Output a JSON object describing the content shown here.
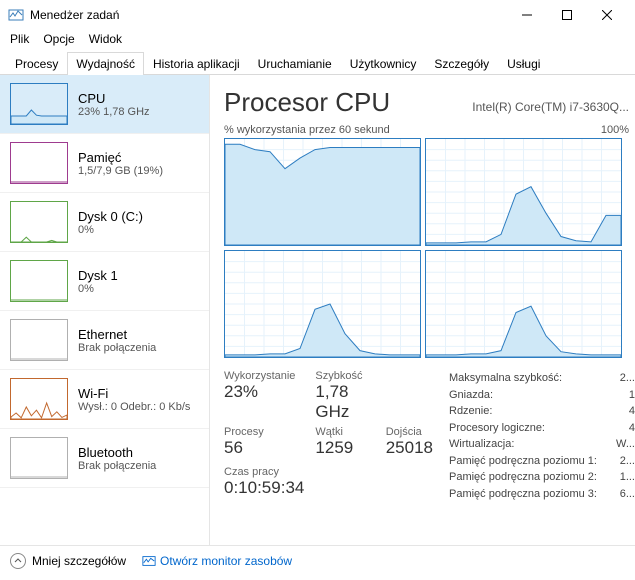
{
  "window": {
    "title": "Menedżer zadań"
  },
  "menu": {
    "file": "Plik",
    "options": "Opcje",
    "view": "Widok"
  },
  "tabs": {
    "items": [
      "Procesy",
      "Wydajność",
      "Historia aplikacji",
      "Uruchamianie",
      "Użytkownicy",
      "Szczegóły",
      "Usługi"
    ],
    "active_index": 1
  },
  "sidebar": {
    "items": [
      {
        "name": "CPU",
        "sub": "23%  1,78 GHz",
        "border": "#2d7dc1",
        "fill": "#cfe8f7",
        "active": true,
        "spark": {
          "type": "area",
          "values": [
            20,
            20,
            20,
            20,
            35,
            22,
            20,
            20,
            20,
            20,
            20,
            20
          ]
        }
      },
      {
        "name": "Pamięć",
        "sub": "1,5/7,9 GB (19%)",
        "border": "#9e3b8f",
        "fill": "#f4e6f2",
        "spark": {
          "type": "flat",
          "level": 0
        }
      },
      {
        "name": "Dysk 0 (C:)",
        "sub": "0%",
        "border": "#5fa648",
        "fill": "#ffffff",
        "spark": {
          "type": "spikes",
          "values": [
            0,
            0,
            0,
            12,
            0,
            0,
            0,
            0,
            4,
            0,
            0,
            0
          ]
        }
      },
      {
        "name": "Dysk 1",
        "sub": "0%",
        "border": "#5fa648",
        "fill": "#ffffff",
        "spark": {
          "type": "flat",
          "level": 0
        }
      },
      {
        "name": "Ethernet",
        "sub": "Brak połączenia",
        "border": "#b0b0b0",
        "fill": "#ffffff",
        "spark": {
          "type": "flat",
          "level": 0
        }
      },
      {
        "name": "Wi-Fi",
        "sub": "Wysł.: 0 Odebr.: 0 Kb/s",
        "border": "#c2682e",
        "fill": "#ffffff",
        "spark": {
          "type": "spikes",
          "values": [
            5,
            15,
            3,
            30,
            8,
            22,
            3,
            40,
            6,
            18,
            4,
            10
          ]
        }
      },
      {
        "name": "Bluetooth",
        "sub": "Brak połączenia",
        "border": "#b0b0b0",
        "fill": "#ffffff",
        "spark": {
          "type": "flat",
          "level": 0
        }
      }
    ]
  },
  "main": {
    "title": "Procesor CPU",
    "model": "Intel(R) Core(TM) i7-3630Q...",
    "chart_caption": "% wykorzystania przez 60 sekund",
    "chart_max": "100%",
    "chart_color": "#2d7dc1",
    "chart_fill": "#cfe8f7",
    "grid_color": "#e6f2fb",
    "charts": [
      [
        95,
        95,
        90,
        88,
        72,
        82,
        90,
        92,
        92,
        92,
        92,
        92,
        92,
        92
      ],
      [
        2,
        2,
        2,
        3,
        3,
        10,
        48,
        55,
        30,
        8,
        4,
        3,
        28,
        28
      ],
      [
        2,
        2,
        2,
        3,
        3,
        8,
        45,
        50,
        22,
        6,
        3,
        2,
        2,
        2
      ],
      [
        2,
        2,
        2,
        3,
        3,
        6,
        42,
        48,
        20,
        5,
        3,
        2,
        2,
        2
      ]
    ],
    "stats_left": {
      "util_lbl": "Wykorzystanie",
      "util_val": "23%",
      "speed_lbl": "Szybkość",
      "speed_val": "1,78 GHz",
      "proc_lbl": "Procesy",
      "proc_val": "56",
      "threads_lbl": "Wątki",
      "threads_val": "1259",
      "handles_lbl": "Dojścia",
      "handles_val": "25018",
      "uptime_lbl": "Czas pracy",
      "uptime_val": "0:10:59:34"
    },
    "stats_right": [
      {
        "k": "Maksymalna szybkość:",
        "v": "2..."
      },
      {
        "k": "Gniazda:",
        "v": "1"
      },
      {
        "k": "Rdzenie:",
        "v": "4"
      },
      {
        "k": "Procesory logiczne:",
        "v": "4"
      },
      {
        "k": "Wirtualizacja:",
        "v": "W..."
      },
      {
        "k": "Pamięć podręczna poziomu 1:",
        "v": "2..."
      },
      {
        "k": "Pamięć podręczna poziomu 2:",
        "v": "1..."
      },
      {
        "k": "Pamięć podręczna poziomu 3:",
        "v": "6..."
      }
    ]
  },
  "footer": {
    "fewer": "Mniej szczegółów",
    "resmon": "Otwórz monitor zasobów"
  }
}
